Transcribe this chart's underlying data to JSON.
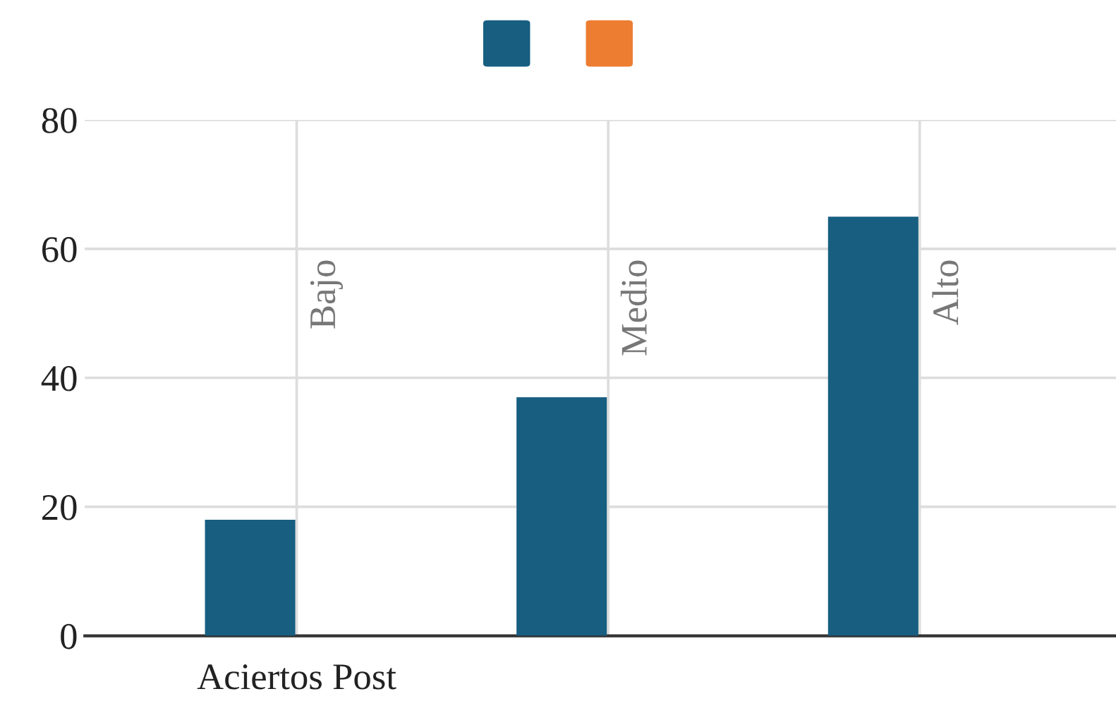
{
  "chart_data": {
    "type": "bar",
    "categories": [
      "Aciertos Post",
      null,
      null
    ],
    "series": [
      {
        "color": "#175e80",
        "values": [
          18,
          37,
          65
        ]
      },
      {
        "color": "#ed7d31",
        "values": [
          null,
          null,
          null
        ]
      }
    ],
    "annotations": [
      "Bajo",
      "Medio",
      "Alto"
    ],
    "ylim": [
      0,
      80
    ],
    "yticks": [
      0,
      20,
      40,
      60,
      80
    ],
    "grid": true
  }
}
